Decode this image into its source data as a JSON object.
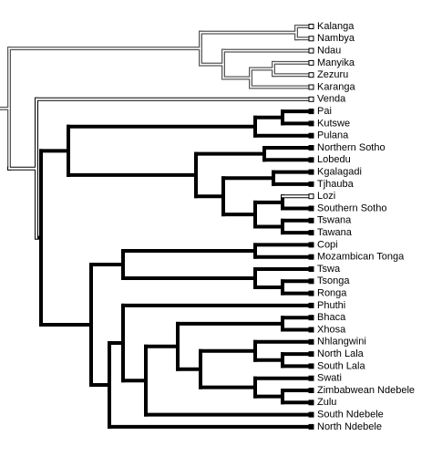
{
  "leaves": [
    "Kalanga",
    "Nambya",
    "Ndau",
    "Manyika",
    "Zezuru",
    "Karanga",
    "Venda",
    "Pai",
    "Kutswe",
    "Pulana",
    "Northern Sotho",
    "Lobedu",
    "Kgalagadi",
    "Tjhauba",
    "Lozi",
    "Southern Sotho",
    "Tswana",
    "Tawana",
    "Copi",
    "Mozambican Tonga",
    "Tswa",
    "Tsonga",
    "Ronga",
    "Phuthi",
    "Bhaca",
    "Xhosa",
    "Nhlangwini",
    "North Lala",
    "South Lala",
    "Swati",
    "Zimbabwean Ndebele",
    "Zulu",
    "South Ndebele",
    "North Ndebele"
  ]
}
